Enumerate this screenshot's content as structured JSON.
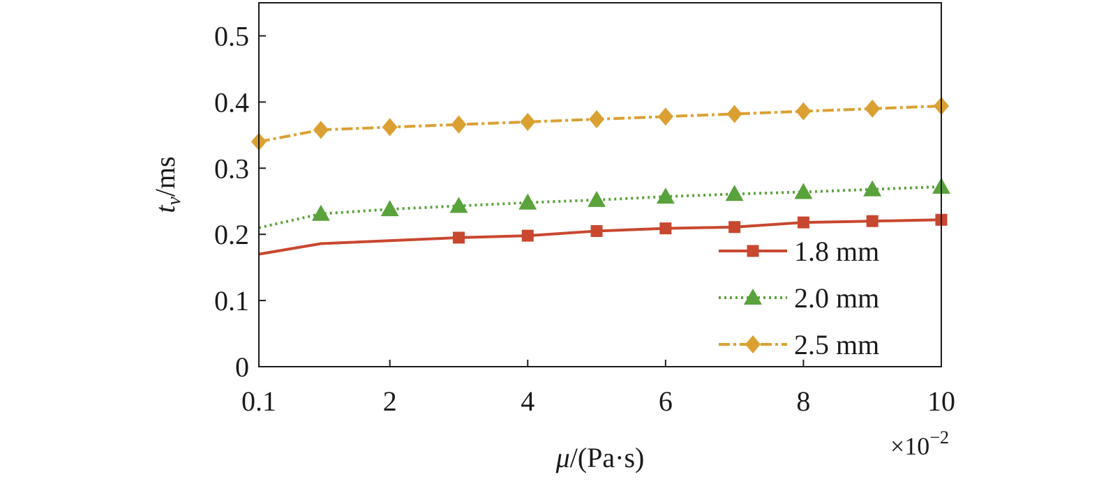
{
  "chart_data": {
    "type": "line",
    "xlabel": {
      "symbol": "μ",
      "unit": "/(Pa·s)"
    },
    "ylabel": {
      "symbol": "t",
      "subscript": "v",
      "unit": "/ms"
    },
    "x_multiplier": {
      "base": "×10",
      "exponent": "−2"
    },
    "xlim": [
      0.1,
      10
    ],
    "ylim": [
      0,
      0.55
    ],
    "x_ticks": [
      0.1,
      2,
      4,
      6,
      8,
      10
    ],
    "x_tick_labels": [
      "0.1",
      "2",
      "4",
      "6",
      "8",
      "10"
    ],
    "y_ticks": [
      0,
      0.1,
      0.2,
      0.3,
      0.4,
      0.5
    ],
    "y_tick_labels": [
      "0",
      "0.1",
      "0.2",
      "0.3",
      "0.4",
      "0.5"
    ],
    "legend_position": "bottom-right",
    "grid": false,
    "series": [
      {
        "name": "1.8 mm",
        "color": "#c8472f",
        "line_style": "solid",
        "marker": "square",
        "x": [
          0.1,
          1,
          3,
          4,
          5,
          6,
          7,
          8,
          9,
          10
        ],
        "y": [
          0.17,
          0.186,
          0.195,
          0.198,
          0.205,
          0.209,
          0.211,
          0.218,
          0.22,
          0.222
        ],
        "marker_x": [
          3,
          4,
          5,
          6,
          7,
          8,
          9,
          10
        ]
      },
      {
        "name": "2.0 mm",
        "color": "#5aa23c",
        "line_style": "dotted",
        "marker": "triangle",
        "x": [
          0.1,
          1,
          2,
          3,
          4,
          5,
          6,
          7,
          8,
          9,
          10
        ],
        "y": [
          0.21,
          0.231,
          0.238,
          0.243,
          0.248,
          0.252,
          0.257,
          0.261,
          0.264,
          0.268,
          0.272
        ],
        "marker_x": [
          1,
          2,
          3,
          4,
          5,
          6,
          7,
          8,
          9,
          10
        ]
      },
      {
        "name": "2.5 mm",
        "color": "#dba032",
        "line_style": "dashdot",
        "marker": "diamond",
        "x": [
          0.1,
          1,
          2,
          3,
          4,
          5,
          6,
          7,
          8,
          9,
          10
        ],
        "y": [
          0.34,
          0.358,
          0.362,
          0.366,
          0.37,
          0.374,
          0.378,
          0.382,
          0.386,
          0.39,
          0.394
        ],
        "marker_x": [
          0.1,
          1,
          2,
          3,
          4,
          5,
          6,
          7,
          8,
          9,
          10
        ]
      }
    ]
  }
}
